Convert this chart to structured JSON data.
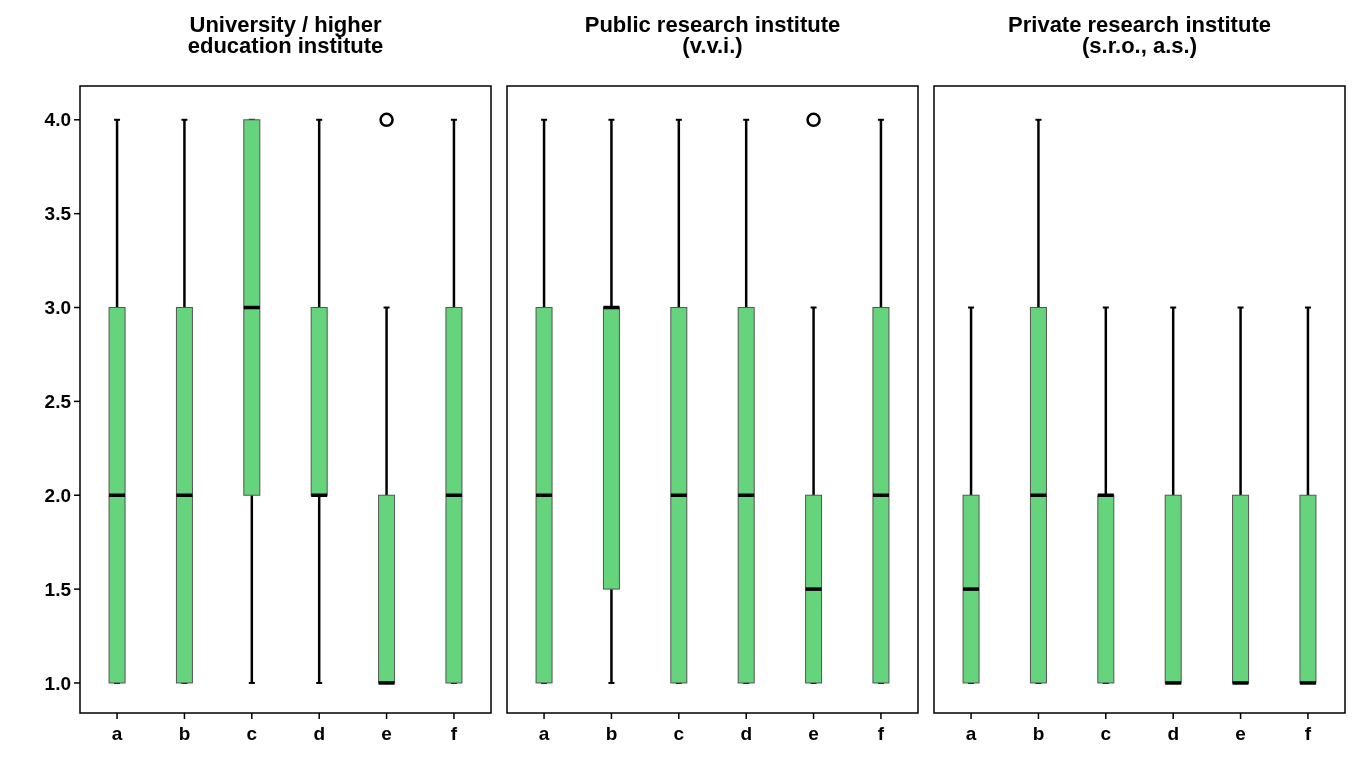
{
  "chart_data": [
    {
      "type": "box",
      "title": "University / higher\neducation institute",
      "categories": [
        "a",
        "b",
        "c",
        "d",
        "e",
        "f"
      ],
      "color": "#66d47c",
      "ylim": [
        0.84,
        4.18
      ],
      "yticks": [
        {
          "value": 1,
          "label": "1.0"
        },
        {
          "value": 1.5,
          "label": "1.5"
        },
        {
          "value": 2,
          "label": "2.0"
        },
        {
          "value": 2.5,
          "label": "2.5"
        },
        {
          "value": 3,
          "label": "3.0"
        },
        {
          "value": 3.5,
          "label": "3.5"
        },
        {
          "value": 4,
          "label": "4.0"
        }
      ],
      "boxes": [
        {
          "low": 1,
          "q1": 1,
          "median": 2,
          "q3": 3,
          "high": 4
        },
        {
          "low": 1,
          "q1": 1,
          "median": 2,
          "q3": 3,
          "high": 4
        },
        {
          "low": 1,
          "q1": 2,
          "median": 3,
          "q3": 4,
          "high": 4
        },
        {
          "low": 1,
          "q1": 2,
          "median": 2,
          "q3": 3,
          "high": 4
        },
        {
          "low": 1,
          "q1": 1,
          "median": 1,
          "q3": 2,
          "high": 3,
          "outliers": [
            4
          ]
        },
        {
          "low": 1,
          "q1": 1,
          "median": 2,
          "q3": 3,
          "high": 4
        }
      ]
    },
    {
      "type": "box",
      "title": "Public research institute\n(v.v.i.)",
      "categories": [
        "a",
        "b",
        "c",
        "d",
        "e",
        "f"
      ],
      "color": "#66d47c",
      "ylim": [
        0.84,
        4.18
      ],
      "tick_labels": "x",
      "boxes": [
        {
          "low": 1,
          "q1": 1,
          "median": 2,
          "q3": 3,
          "high": 4
        },
        {
          "low": 1,
          "q1": 1.5,
          "median": 3,
          "q3": 3,
          "high": 4
        },
        {
          "low": 1,
          "q1": 1,
          "median": 2,
          "q3": 3,
          "high": 4
        },
        {
          "low": 1,
          "q1": 1,
          "median": 2,
          "q3": 3,
          "high": 4
        },
        {
          "low": 1,
          "q1": 1,
          "median": 1.5,
          "q3": 2,
          "high": 3,
          "outliers": [
            4
          ]
        },
        {
          "low": 1,
          "q1": 1,
          "median": 2,
          "q3": 3,
          "high": 4
        }
      ]
    },
    {
      "type": "box",
      "title": "Private research institute\n(s.r.o., a.s.)",
      "categories": [
        "a",
        "b",
        "c",
        "d",
        "e",
        "f"
      ],
      "color": "#66d47c",
      "ylim": [
        0.84,
        4.18
      ],
      "tick_labels": "x",
      "boxes": [
        {
          "low": 1,
          "q1": 1,
          "median": 1.5,
          "q3": 2,
          "high": 3
        },
        {
          "low": 1,
          "q1": 1,
          "median": 2,
          "q3": 3,
          "high": 4
        },
        {
          "low": 1,
          "q1": 1,
          "median": 2,
          "q3": 2,
          "high": 3
        },
        {
          "low": 1,
          "q1": 1,
          "median": 1,
          "q3": 2,
          "high": 3
        },
        {
          "low": 1,
          "q1": 1,
          "median": 1,
          "q3": 2,
          "high": 3
        },
        {
          "low": 1,
          "q1": 1,
          "median": 1,
          "q3": 2,
          "high": 3
        }
      ]
    }
  ]
}
